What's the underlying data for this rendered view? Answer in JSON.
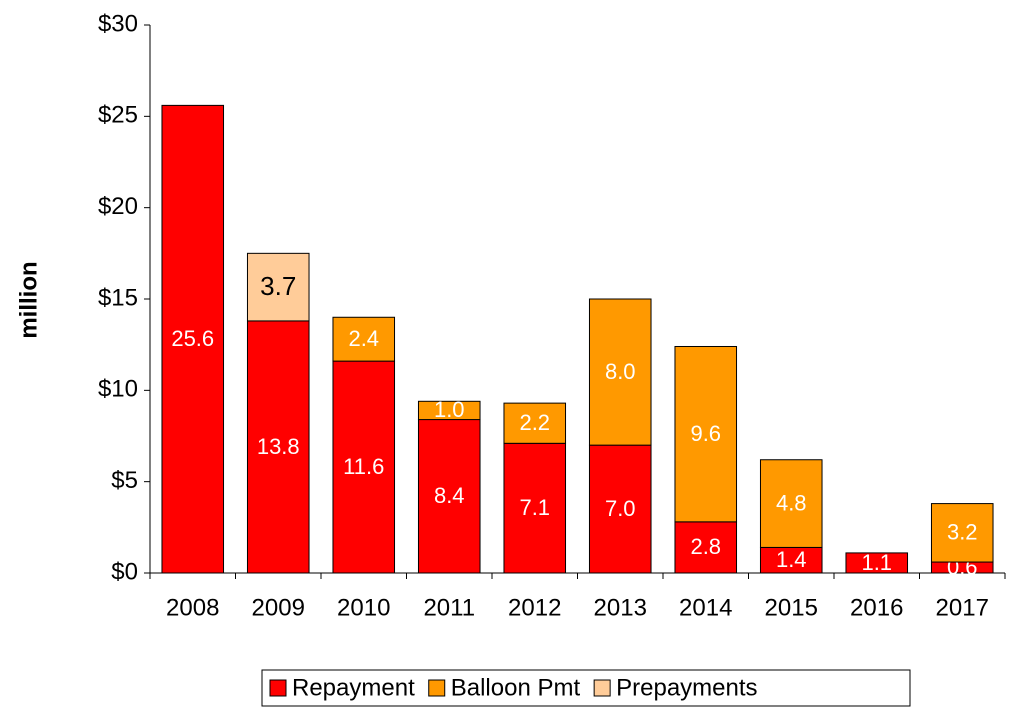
{
  "chart_data": {
    "type": "stacked-bar",
    "y_label": "million",
    "categories": [
      "2008",
      "2009",
      "2010",
      "2011",
      "2012",
      "2013",
      "2014",
      "2015",
      "2016",
      "2017"
    ],
    "series": [
      {
        "name": "Repayment",
        "color": "#ff0000",
        "label_color": "#ffffff",
        "values": [
          25.6,
          13.8,
          11.6,
          8.4,
          7.1,
          7.0,
          2.8,
          1.4,
          1.1,
          0.6
        ],
        "value_labels": [
          "25.6",
          "13.8",
          "11.6",
          "8.4",
          "7.1",
          "7.0",
          "2.8",
          "1.4",
          "1.1",
          "0.6"
        ]
      },
      {
        "name": "Balloon Pmt",
        "color": "#ff9900",
        "label_color": "#ffffff",
        "values": [
          null,
          null,
          2.4,
          1.0,
          2.2,
          8.0,
          9.6,
          4.8,
          null,
          3.2
        ],
        "value_labels": [
          null,
          null,
          "2.4",
          "1.0",
          "2.2",
          "8.0",
          "9.6",
          "4.8",
          null,
          "3.2"
        ]
      },
      {
        "name": "Prepayments",
        "color": "#ffcc99",
        "label_color": "#000000",
        "values": [
          null,
          3.7,
          null,
          null,
          null,
          null,
          null,
          null,
          null,
          null
        ],
        "value_labels": [
          null,
          "3.7",
          null,
          null,
          null,
          null,
          null,
          null,
          null,
          null
        ]
      }
    ],
    "ylim": [
      0,
      30
    ],
    "yticks": [
      {
        "value": 0,
        "label": "$0"
      },
      {
        "value": 5,
        "label": "$5"
      },
      {
        "value": 10,
        "label": "$10"
      },
      {
        "value": 15,
        "label": "$15"
      },
      {
        "value": 20,
        "label": "$20"
      },
      {
        "value": 25,
        "label": "$25"
      },
      {
        "value": 30,
        "label": "$30"
      }
    ],
    "legend": "bottom"
  }
}
